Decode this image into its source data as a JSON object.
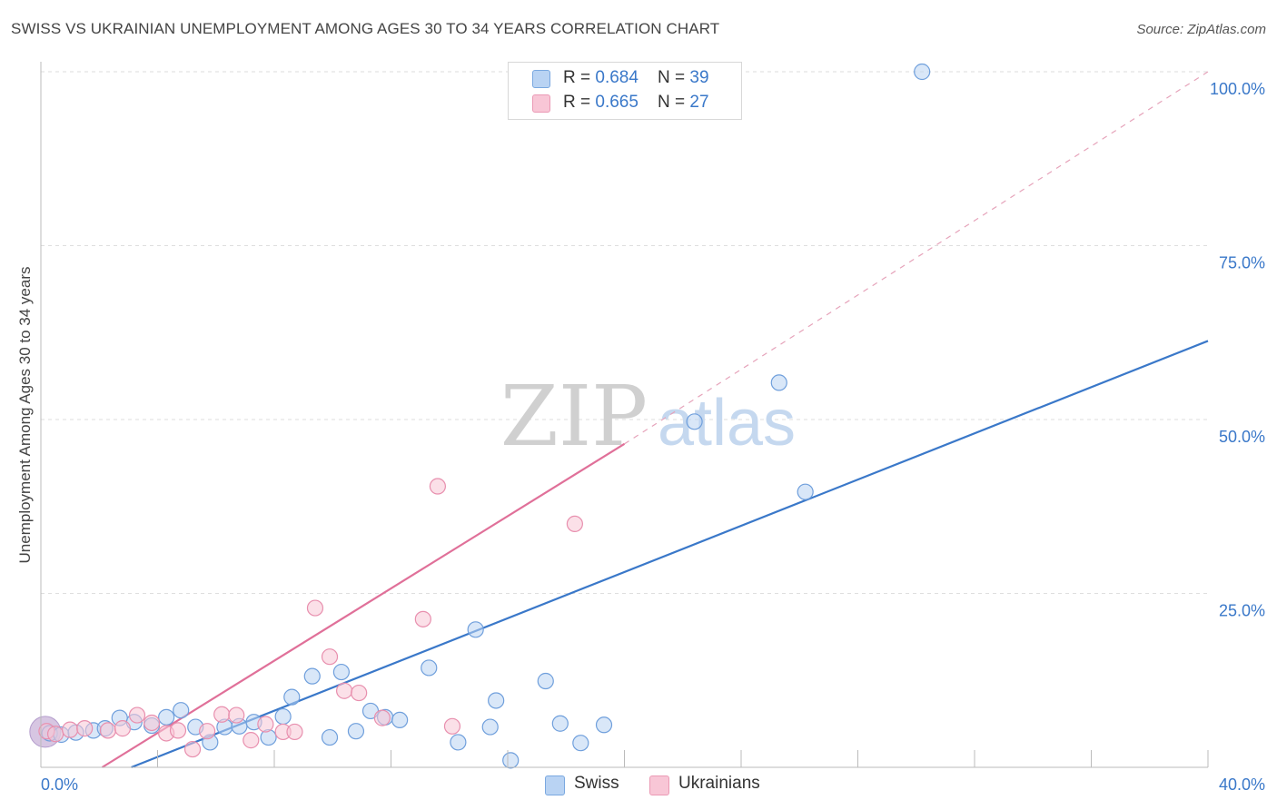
{
  "title": "SWISS VS UKRAINIAN UNEMPLOYMENT AMONG AGES 30 TO 34 YEARS CORRELATION CHART",
  "source": "Source: ZipAtlas.com",
  "watermark": {
    "zip": "ZIP",
    "atlas": "atlas"
  },
  "legend": {
    "swiss": {
      "r_label": "R = ",
      "r_value": "0.684",
      "n_label": "N = ",
      "n_value": "39"
    },
    "ukrainians": {
      "r_label": "R = ",
      "r_value": "0.665",
      "n_label": "N = ",
      "n_value": "27"
    }
  },
  "chart_data": {
    "type": "scatter",
    "title": "SWISS VS UKRAINIAN UNEMPLOYMENT AMONG AGES 30 TO 34 YEARS CORRELATION CHART",
    "xlabel": "",
    "ylabel": "Unemployment Among Ages 30 to 34 years",
    "xlim": [
      0,
      40
    ],
    "ylim": [
      0,
      100
    ],
    "x_tick_labels": [
      "0.0%",
      "40.0%"
    ],
    "y_tick_labels": [
      "25.0%",
      "50.0%",
      "75.0%",
      "100.0%"
    ],
    "y_ticks": [
      25,
      50,
      75,
      100
    ],
    "grid": true,
    "colors": {
      "swiss": "#3a78c9",
      "ukrainians": "#e07099",
      "swiss_fill": "#b9d3f3",
      "ukrainians_fill": "#f8c6d6"
    },
    "series": [
      {
        "name": "Swiss",
        "points": [
          [
            0.3,
            4.9
          ],
          [
            0.7,
            4.7
          ],
          [
            1.2,
            5.0
          ],
          [
            1.8,
            5.3
          ],
          [
            2.2,
            5.6
          ],
          [
            2.7,
            7.1
          ],
          [
            3.2,
            6.5
          ],
          [
            3.8,
            6.0
          ],
          [
            4.3,
            7.2
          ],
          [
            4.8,
            8.2
          ],
          [
            5.3,
            5.8
          ],
          [
            5.8,
            3.6
          ],
          [
            6.3,
            5.8
          ],
          [
            6.8,
            5.9
          ],
          [
            7.3,
            6.5
          ],
          [
            7.8,
            4.3
          ],
          [
            8.3,
            7.3
          ],
          [
            8.6,
            10.1
          ],
          [
            9.3,
            13.1
          ],
          [
            9.9,
            4.3
          ],
          [
            10.3,
            13.7
          ],
          [
            10.8,
            5.2
          ],
          [
            11.3,
            8.1
          ],
          [
            11.8,
            7.2
          ],
          [
            12.3,
            6.8
          ],
          [
            13.3,
            14.3
          ],
          [
            14.3,
            3.6
          ],
          [
            14.9,
            19.8
          ],
          [
            15.4,
            5.8
          ],
          [
            15.6,
            9.6
          ],
          [
            16.1,
            1.0
          ],
          [
            17.3,
            12.4
          ],
          [
            17.8,
            6.3
          ],
          [
            18.5,
            3.5
          ],
          [
            19.3,
            6.1
          ],
          [
            22.4,
            49.7
          ],
          [
            25.3,
            55.3
          ],
          [
            26.2,
            39.6
          ],
          [
            30.2,
            100.0
          ]
        ]
      },
      {
        "name": "Ukrainians",
        "points": [
          [
            0.2,
            5.2
          ],
          [
            0.5,
            4.8
          ],
          [
            1.0,
            5.4
          ],
          [
            1.5,
            5.6
          ],
          [
            2.3,
            5.3
          ],
          [
            2.8,
            5.6
          ],
          [
            3.3,
            7.5
          ],
          [
            3.8,
            6.4
          ],
          [
            4.3,
            4.9
          ],
          [
            4.7,
            5.3
          ],
          [
            5.2,
            2.6
          ],
          [
            5.7,
            5.2
          ],
          [
            6.2,
            7.6
          ],
          [
            6.7,
            7.5
          ],
          [
            7.2,
            3.9
          ],
          [
            7.7,
            6.2
          ],
          [
            8.3,
            5.1
          ],
          [
            8.7,
            5.1
          ],
          [
            9.4,
            22.9
          ],
          [
            9.9,
            15.9
          ],
          [
            10.4,
            11.0
          ],
          [
            10.9,
            10.7
          ],
          [
            11.7,
            7.1
          ],
          [
            13.1,
            21.3
          ],
          [
            13.6,
            40.4
          ],
          [
            14.1,
            5.9
          ],
          [
            18.3,
            35.0
          ]
        ]
      }
    ],
    "trendlines": [
      {
        "name": "Swiss",
        "x0": 3.1,
        "y0": 0.0,
        "x1": 40.0,
        "y1": 61.3
      },
      {
        "name": "Ukrainians",
        "x0": 2.1,
        "y0": 0.0,
        "x1": 20.0,
        "y1": 46.5,
        "dashed_to_x": 40.0,
        "dashed_to_y": 100.0
      }
    ]
  },
  "bottom_legend": {
    "swiss": "Swiss",
    "ukrainians": "Ukrainians"
  }
}
